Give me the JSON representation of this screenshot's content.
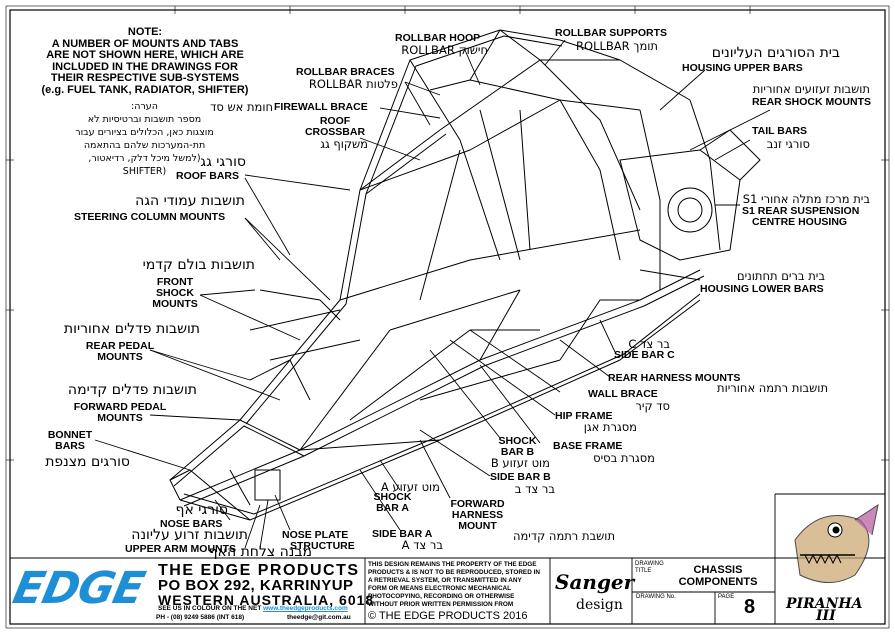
{
  "note": {
    "title": "NOTE:",
    "body_lines": [
      "A NUMBER OF MOUNTS AND TABS",
      "ARE NOT SHOWN HERE, WHICH ARE",
      "INCLUDED IN THE DRAWINGS FOR",
      "THEIR RESPECTIVE SUB-SYSTEMS",
      "(e.g. FUEL TANK, RADIATOR, SHIFTER)"
    ],
    "hebrew_title": "הערה:",
    "hebrew_lines": [
      "מספר תושבות וברטיסיות לא",
      "מוצגות כאן, הכלולים בציורים עבור",
      "תת-המערכות שלהם בהתאמה",
      "(למשל מיכל דלק, רדיאטור,",
      "(SHIFTER"
    ]
  },
  "labels": {
    "rollbar_hoop": "ROLLBAR HOOP",
    "rollbar_hoop_heb": "חישוק ROLLBAR",
    "rollbar_supports": "ROLLBAR SUPPORTS",
    "rollbar_supports_heb": "תומך ROLLBAR",
    "housing_upper_heb": "בית הסורגים העליונים",
    "housing_upper": "HOUSING UPPER BARS",
    "rollbar_braces": "ROLLBAR BRACES",
    "rollbar_braces_heb": "פלטות ROLLBAR",
    "rear_shock_heb": "תושבות זעזועים אחוריות",
    "rear_shock": "REAR SHOCK MOUNTS",
    "firewall_heb": "חומת אש סד",
    "firewall": "FIREWALL BRACE",
    "roof_crossbar_1": "ROOF",
    "roof_crossbar_2": "CROSSBAR",
    "roof_crossbar_heb": "משקוף גג",
    "tail_bars": "TAIL BARS",
    "tail_bars_heb": "סורגי זנב",
    "roof_bars_heb": "סורגי גג",
    "roof_bars": "ROOF BARS",
    "s1_heb": "בית מרכז מתלה אחורי S1",
    "s1_1": "S1 REAR SUSPENSION",
    "s1_2": "CENTRE HOUSING",
    "steering_heb": "תושבות עמודי הגה",
    "steering": "STEERING COLUMN MOUNTS",
    "front_shock_heb": "תושבות בולם קדמי",
    "front_shock_1": "FRONT",
    "front_shock_2": "SHOCK",
    "front_shock_3": "MOUNTS",
    "housing_lower_heb": "בית ברים תחתונים",
    "housing_lower": "HOUSING LOWER BARS",
    "rear_pedal_heb": "תושבות פדלים אחוריות",
    "rear_pedal_1": "REAR PEDAL",
    "rear_pedal_2": "MOUNTS",
    "side_c_heb": "בר צד C",
    "side_c": "SIDE BAR C",
    "rear_harness": "REAR HARNESS MOUNTS",
    "rear_harness_heb": "תושבות רתמה אחוריות",
    "forward_pedal_heb": "תושבות פדלים קדימה",
    "forward_pedal_1": "FORWARD PEDAL",
    "forward_pedal_2": "MOUNTS",
    "wall_brace": "WALL BRACE",
    "wall_brace_heb": "סד קיר",
    "hip_frame": "HIP FRAME",
    "hip_frame_heb": "מסגרת אגן",
    "bonnet_1": "BONNET",
    "bonnet_2": "BARS",
    "bonnet_heb": "סורגים מצנפת",
    "shock_b_1": "SHOCK",
    "shock_b_2": "BAR B",
    "shock_b_heb": "מוט זעזוע B",
    "base_frame": "BASE FRAME",
    "base_frame_heb": "מסגרת בסיס",
    "side_b": "SIDE BAR B",
    "side_b_heb": "בר צד ב",
    "shock_a_heb": "מוט זעזוע A",
    "shock_a_1": "SHOCK",
    "shock_a_2": "BAR A",
    "nose_bars_heb": "סורגי אף",
    "nose_bars": "NOSE BARS",
    "upper_arm_heb": "תושבות זרוע עליונה",
    "upper_arm": "UPPER ARM MOUNTS",
    "forward_harness_1": "FORWARD",
    "forward_harness_2": "HARNESS",
    "forward_harness_3": "MOUNT",
    "forward_harness_heb": "תושבת רתמה קדימה",
    "nose_plate_1": "NOSE PLATE",
    "nose_plate_2": "STRUCTURE",
    "nose_plate_heb": "מבנה צלחת האף",
    "side_a": "SIDE BAR A",
    "side_a_heb": "בר צד A"
  },
  "title_block": {
    "company": "THE EDGE PRODUCTS",
    "address_1": "PO BOX 292, KARRINYUP",
    "address_2": "WESTERN AUSTRALIA, 6018",
    "see_us": "SEE US IN COLOUR ON THE NET",
    "website": "www.theedgeproducts.com",
    "phone": "PH - (08) 9249 5886 (INT 618)",
    "email": "theedge@git.com.au",
    "rights_lines": [
      "THIS DESIGN REMAINS THE PROPERTY OF THE EDGE",
      "PRODUCTS & IS NOT TO BE REPRODUCED, STORED IN",
      "A RETRIEVAL SYSTEM, OR TRANSMITTED IN ANY",
      "FORM OR MEANS ELECTRONIC MECHANICAL",
      "PHOTOCOPYING, RECORDING OR OTHERWISE",
      "WITHOUT PRIOR WRITTEN PERMISSION FROM"
    ],
    "copyright": "© THE EDGE PRODUCTS 2016",
    "designer_1": "Sanger",
    "designer_2": "design",
    "drawing_title_label_1": "DRAWING",
    "drawing_title_label_2": "TITLE",
    "drawing_title_1": "CHASSIS",
    "drawing_title_2": "COMPONENTS",
    "drawing_no_label": "DRAWING No.",
    "page_label": "PAGE",
    "page_number": "8",
    "logo_text": "EDGE",
    "product_name": "PIRANHA",
    "product_version": "III"
  },
  "colors": {
    "logo_blue": "#1e8fd6",
    "frame": "#000000"
  }
}
